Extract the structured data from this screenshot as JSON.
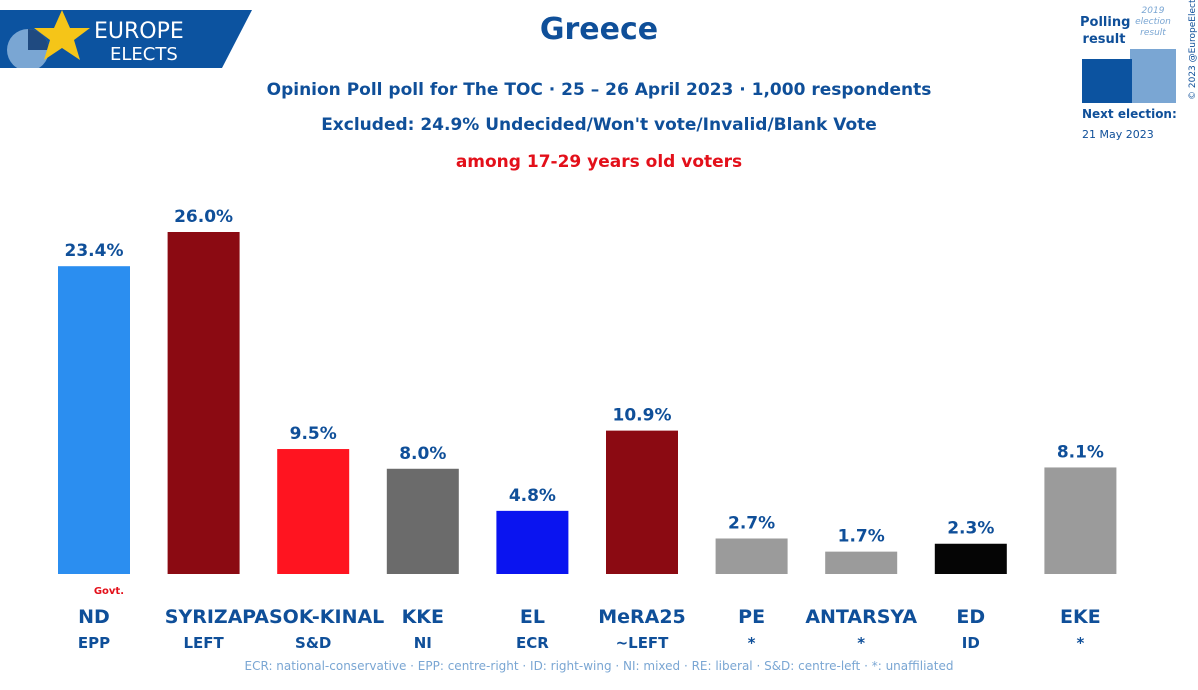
{
  "header": {
    "logo_line1": "EUROPE",
    "logo_line2": "ELECTS",
    "title": "Greece",
    "subtitle1": "Opinion Poll poll for The TOC · 25 – 26 April 2023 · 1,000 respondents",
    "subtitle2": "Excluded: 24.9% Undecided/Won't vote/Invalid/Blank Vote",
    "subtitle3": "among 17-29 years old voters"
  },
  "legend": {
    "polling_label": "Polling result",
    "election_label": "2019 election result",
    "next_election_label": "Next election:",
    "next_election_date": "21 May 2023",
    "copyright": "© 2023 @EuropeElects"
  },
  "footer_note": "ECR: national-conservative · EPP: centre-right · ID: right-wing · NI: mixed · RE: liberal · S&D: centre-left · *: unaffiliated",
  "colors": {
    "title": "#0f4f99",
    "highlight": "#e3101a",
    "note": "#7aa6d3"
  },
  "chart_data": {
    "type": "bar",
    "categories": [
      "ND",
      "SYRIZA",
      "PASOK-KINAL",
      "KKE",
      "EL",
      "MeRA25",
      "PE",
      "ANTARSYA",
      "ED",
      "EKE"
    ],
    "groups": [
      "EPP",
      "LEFT",
      "S&D",
      "NI",
      "ECR",
      "~LEFT",
      "*",
      "*",
      "ID",
      "*"
    ],
    "values": [
      23.4,
      26.0,
      9.5,
      8.0,
      4.8,
      10.9,
      2.7,
      1.7,
      2.3,
      8.1
    ],
    "value_labels": [
      "23.4%",
      "26.0%",
      "9.5%",
      "8.0%",
      "4.8%",
      "10.9%",
      "2.7%",
      "1.7%",
      "2.3%",
      "8.1%"
    ],
    "colors": [
      "#2b8ef0",
      "#8b0a12",
      "#ff1420",
      "#6b6b6b",
      "#0a14f0",
      "#8b0a12",
      "#9b9b9b",
      "#9b9b9b",
      "#050505",
      "#9b9b9b"
    ],
    "annotation": {
      "category": "ND",
      "text": "Govt."
    },
    "ylim": [
      0,
      26.0
    ]
  }
}
